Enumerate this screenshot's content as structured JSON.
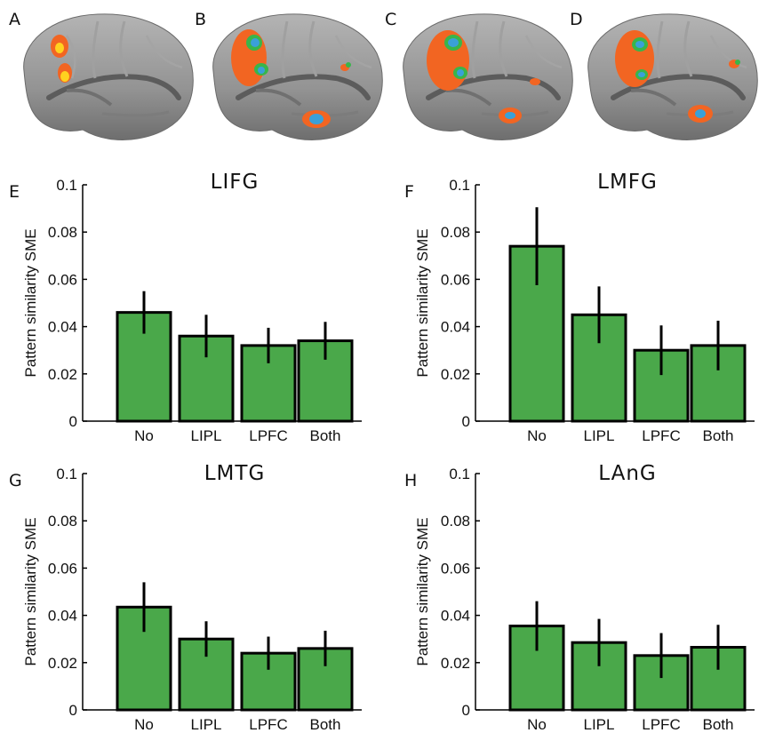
{
  "brain_panels": [
    {
      "letter": "A"
    },
    {
      "letter": "B"
    },
    {
      "letter": "C"
    },
    {
      "letter": "D"
    }
  ],
  "colors": {
    "bar_fill": "#4aa84a",
    "bar_stroke": "#000000",
    "cortex": "#8e8e8e",
    "activation_hot": "#f26522",
    "activation_yellow": "#ffd21f",
    "activation_cool": "#3aa0d8",
    "activation_green": "#39b54a"
  },
  "chart_data": [
    {
      "panel": "E",
      "type": "bar",
      "title": "LIFG",
      "ylabel": "Pattern similarity SME",
      "xlabel": "",
      "categories": [
        "No",
        "LIPL",
        "LPFC",
        "Both"
      ],
      "values": [
        0.046,
        0.036,
        0.032,
        0.034
      ],
      "errors": [
        0.009,
        0.009,
        0.0075,
        0.008
      ],
      "ylim": [
        0,
        0.1
      ],
      "yticks": [
        "0",
        "0.02",
        "0.04",
        "0.06",
        "0.08",
        "0.1"
      ],
      "grid": false
    },
    {
      "panel": "F",
      "type": "bar",
      "title": "LMFG",
      "ylabel": "Pattern similarity SME",
      "xlabel": "",
      "categories": [
        "No",
        "LIPL",
        "LPFC",
        "Both"
      ],
      "values": [
        0.074,
        0.045,
        0.03,
        0.032
      ],
      "errors": [
        0.0165,
        0.012,
        0.0105,
        0.0105
      ],
      "ylim": [
        0,
        0.1
      ],
      "yticks": [
        "0",
        "0.02",
        "0.04",
        "0.06",
        "0.08",
        "0.1"
      ],
      "grid": false
    },
    {
      "panel": "G",
      "type": "bar",
      "title": "LMTG",
      "ylabel": "Pattern similarity SME",
      "xlabel": "",
      "categories": [
        "No",
        "LIPL",
        "LPFC",
        "Both"
      ],
      "values": [
        0.0435,
        0.03,
        0.024,
        0.026
      ],
      "errors": [
        0.0105,
        0.0075,
        0.007,
        0.0075
      ],
      "ylim": [
        0,
        0.1
      ],
      "yticks": [
        "0",
        "0.02",
        "0.04",
        "0.06",
        "0.08",
        "0.1"
      ],
      "grid": false
    },
    {
      "panel": "H",
      "type": "bar",
      "title": "LAnG",
      "ylabel": "Pattern similarity SME",
      "xlabel": "",
      "categories": [
        "No",
        "LIPL",
        "LPFC",
        "Both"
      ],
      "values": [
        0.0355,
        0.0285,
        0.023,
        0.0265
      ],
      "errors": [
        0.0105,
        0.01,
        0.0095,
        0.0095
      ],
      "ylim": [
        0,
        0.1
      ],
      "yticks": [
        "0",
        "0.02",
        "0.04",
        "0.06",
        "0.08",
        "0.1"
      ],
      "grid": false
    }
  ]
}
